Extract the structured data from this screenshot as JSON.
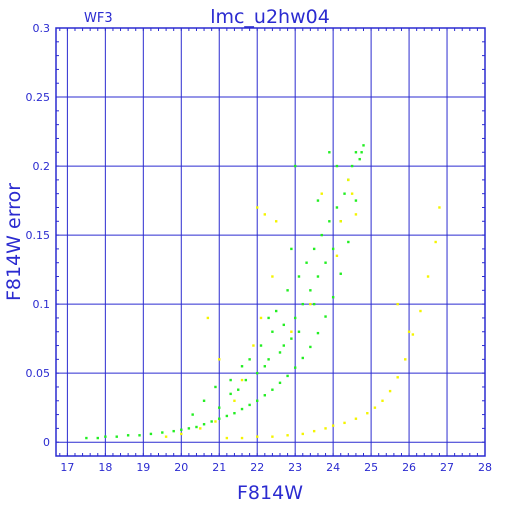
{
  "chart_data": {
    "type": "scatter",
    "title": "lmc_u2hw04",
    "corner_label": "WF3",
    "xlabel": "F814W",
    "ylabel": "F814W error",
    "xlim": [
      16.7,
      28
    ],
    "ylim": [
      -0.01,
      0.3
    ],
    "xticks": [
      "17",
      "18",
      "19",
      "20",
      "21",
      "22",
      "23",
      "24",
      "25",
      "26",
      "27",
      "28"
    ],
    "yticks": [
      "0",
      "0.05",
      "0.1",
      "0.15",
      "0.2",
      "0.25",
      "0.3"
    ],
    "grid": true,
    "colors": {
      "axes": "#2b2bd0",
      "series_green": "#22ee22",
      "series_yellow": "#f4f400"
    },
    "series": [
      {
        "color": "green",
        "points": [
          [
            17.5,
            0.003
          ],
          [
            17.8,
            0.003
          ],
          [
            18.0,
            0.004
          ],
          [
            18.3,
            0.004
          ],
          [
            18.6,
            0.005
          ],
          [
            18.9,
            0.005
          ],
          [
            19.2,
            0.006
          ],
          [
            19.5,
            0.007
          ],
          [
            19.8,
            0.008
          ],
          [
            20.0,
            0.009
          ],
          [
            20.2,
            0.01
          ],
          [
            20.4,
            0.011
          ],
          [
            20.6,
            0.013
          ],
          [
            20.8,
            0.015
          ],
          [
            21.0,
            0.017
          ],
          [
            21.2,
            0.019
          ],
          [
            21.4,
            0.021
          ],
          [
            21.6,
            0.024
          ],
          [
            21.8,
            0.027
          ],
          [
            22.0,
            0.03
          ],
          [
            22.2,
            0.034
          ],
          [
            22.4,
            0.038
          ],
          [
            22.6,
            0.043
          ],
          [
            22.8,
            0.048
          ],
          [
            23.0,
            0.054
          ],
          [
            23.2,
            0.061
          ],
          [
            23.4,
            0.069
          ],
          [
            23.6,
            0.079
          ],
          [
            23.8,
            0.091
          ],
          [
            24.0,
            0.105
          ],
          [
            24.2,
            0.122
          ],
          [
            24.4,
            0.145
          ],
          [
            24.6,
            0.175
          ],
          [
            24.8,
            0.215
          ],
          [
            20.3,
            0.02
          ],
          [
            20.6,
            0.03
          ],
          [
            20.9,
            0.04
          ],
          [
            21.0,
            0.025
          ],
          [
            21.3,
            0.045
          ],
          [
            21.5,
            0.038
          ],
          [
            21.6,
            0.055
          ],
          [
            21.8,
            0.06
          ],
          [
            22.0,
            0.05
          ],
          [
            22.1,
            0.07
          ],
          [
            22.3,
            0.06
          ],
          [
            22.4,
            0.08
          ],
          [
            22.5,
            0.095
          ],
          [
            22.6,
            0.065
          ],
          [
            22.7,
            0.085
          ],
          [
            22.8,
            0.11
          ],
          [
            22.9,
            0.075
          ],
          [
            23.0,
            0.09
          ],
          [
            23.1,
            0.12
          ],
          [
            23.2,
            0.1
          ],
          [
            23.3,
            0.13
          ],
          [
            23.4,
            0.11
          ],
          [
            23.5,
            0.14
          ],
          [
            23.6,
            0.12
          ],
          [
            23.7,
            0.15
          ],
          [
            23.8,
            0.13
          ],
          [
            23.9,
            0.16
          ],
          [
            24.0,
            0.14
          ],
          [
            24.1,
            0.17
          ],
          [
            24.2,
            0.16
          ],
          [
            24.3,
            0.18
          ],
          [
            24.4,
            0.19
          ],
          [
            24.5,
            0.2
          ],
          [
            24.6,
            0.21
          ],
          [
            24.7,
            0.205
          ],
          [
            24.75,
            0.21
          ],
          [
            23.0,
            0.2
          ],
          [
            23.9,
            0.21
          ],
          [
            24.1,
            0.2
          ],
          [
            22.3,
            0.09
          ],
          [
            22.9,
            0.14
          ],
          [
            23.6,
            0.175
          ],
          [
            21.3,
            0.035
          ],
          [
            21.7,
            0.045
          ],
          [
            22.2,
            0.055
          ],
          [
            22.7,
            0.07
          ],
          [
            23.1,
            0.08
          ],
          [
            23.5,
            0.1
          ]
        ]
      },
      {
        "color": "yellow",
        "points": [
          [
            21.2,
            0.003
          ],
          [
            21.6,
            0.003
          ],
          [
            22.0,
            0.004
          ],
          [
            22.4,
            0.004
          ],
          [
            22.8,
            0.005
          ],
          [
            23.2,
            0.006
          ],
          [
            23.5,
            0.008
          ],
          [
            23.8,
            0.01
          ],
          [
            24.0,
            0.012
          ],
          [
            24.3,
            0.014
          ],
          [
            24.6,
            0.017
          ],
          [
            24.9,
            0.021
          ],
          [
            25.1,
            0.025
          ],
          [
            25.3,
            0.03
          ],
          [
            25.5,
            0.037
          ],
          [
            25.7,
            0.047
          ],
          [
            25.9,
            0.06
          ],
          [
            26.1,
            0.078
          ],
          [
            26.3,
            0.095
          ],
          [
            26.5,
            0.12
          ],
          [
            26.7,
            0.145
          ],
          [
            26.8,
            0.17
          ],
          [
            19.6,
            0.004
          ],
          [
            20.0,
            0.006
          ],
          [
            20.5,
            0.01
          ],
          [
            20.9,
            0.015
          ],
          [
            21.4,
            0.03
          ],
          [
            21.6,
            0.045
          ],
          [
            21.9,
            0.07
          ],
          [
            22.1,
            0.09
          ],
          [
            22.4,
            0.12
          ],
          [
            22.5,
            0.16
          ],
          [
            22.9,
            0.08
          ],
          [
            23.4,
            0.1
          ],
          [
            24.1,
            0.135
          ],
          [
            24.2,
            0.16
          ],
          [
            24.6,
            0.165
          ],
          [
            25.7,
            0.1
          ],
          [
            26.0,
            0.08
          ],
          [
            20.7,
            0.09
          ],
          [
            21.0,
            0.06
          ],
          [
            22.0,
            0.17
          ],
          [
            22.2,
            0.165
          ],
          [
            24.4,
            0.19
          ],
          [
            24.5,
            0.18
          ],
          [
            23.7,
            0.18
          ]
        ]
      }
    ]
  }
}
